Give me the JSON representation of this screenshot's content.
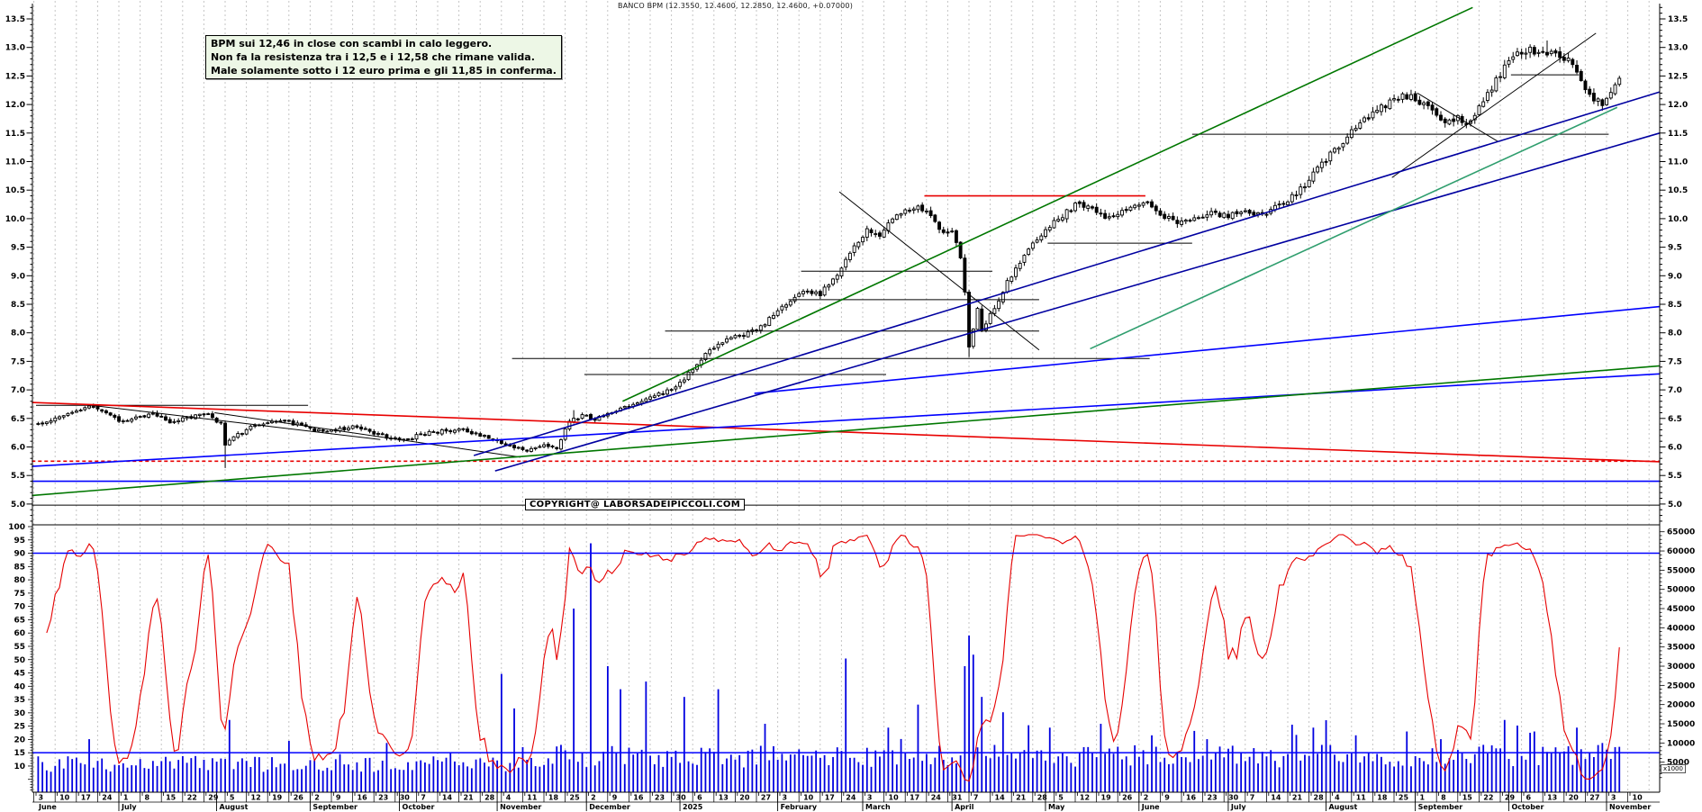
{
  "annotation": {
    "line1": "BPM sui 12,46 in close con scambi in calo leggero.",
    "line2": "Non fa la resistenza tra i 12,5 e i 12,58 che rimane valida.",
    "line3": "Male solamente sotto i 12 euro prima e gli 11,85 in conferma."
  },
  "copyright": "COPYRIGHT@ LABORSADEIPICCOLI.COM",
  "colors": {
    "grid": "#c5c5c5",
    "candle": "#000000",
    "volume_bar": "#0000e0",
    "oscillator": "#e60000",
    "band_line": "#0000ff",
    "black": "#000000",
    "red": "#e80000",
    "blue": "#0000ff",
    "navy": "#0000a0",
    "green": "#007700",
    "teal": "#2f9e6e"
  },
  "chart_data": {
    "type": "candlestick",
    "title": "BANCO BPM (12.3550, 12.4600, 12.2850, 12.4600, +0.07000)",
    "symbol": "BANCO BPM",
    "last_quote": {
      "open": 12.355,
      "high": 12.46,
      "low": 12.285,
      "close": 12.46,
      "change": "+0.07000"
    },
    "price_axis": {
      "label_min": 5.0,
      "label_max": 13.5,
      "step": 0.5,
      "minor_step": 0.1
    },
    "oscillator_axis": {
      "label_min": 10,
      "label_max": 100,
      "step": 5,
      "upper_band": 90,
      "lower_band": 15
    },
    "volume_axis": {
      "label_min": 5000,
      "label_max": 65000,
      "step": 5000,
      "unit_label": "x1000"
    },
    "x_axis": {
      "start_monday": "2024-06-03",
      "months": [
        {
          "label": "June",
          "weeks": [
            3,
            10,
            17,
            24
          ]
        },
        {
          "label": "July",
          "weeks": [
            1,
            8,
            15,
            22,
            29
          ]
        },
        {
          "label": "August",
          "weeks": [
            5,
            12,
            19,
            26
          ]
        },
        {
          "label": "September",
          "weeks": [
            2,
            9,
            16,
            23,
            30
          ]
        },
        {
          "label": "October",
          "weeks": [
            7,
            14,
            21,
            28
          ]
        },
        {
          "label": "November",
          "weeks": [
            4,
            11,
            18,
            25
          ]
        },
        {
          "label": "December",
          "weeks": [
            2,
            9,
            16,
            23,
            30
          ]
        },
        {
          "label": "2025",
          "weeks": [
            6,
            13,
            20,
            27
          ]
        },
        {
          "label": "February",
          "weeks": [
            3,
            10,
            17,
            24
          ]
        },
        {
          "label": "March",
          "weeks": [
            3,
            10,
            17,
            24,
            31
          ]
        },
        {
          "label": "April",
          "weeks": [
            7,
            14,
            21,
            28
          ]
        },
        {
          "label": "May",
          "weeks": [
            5,
            12,
            19,
            26
          ]
        },
        {
          "label": "June",
          "weeks": [
            2,
            9,
            16,
            23,
            30
          ]
        },
        {
          "label": "July",
          "weeks": [
            7,
            14,
            21,
            28
          ]
        },
        {
          "label": "August",
          "weeks": [
            4,
            11,
            18,
            25
          ]
        },
        {
          "label": "September",
          "weeks": [
            1,
            8,
            15,
            22,
            29
          ]
        },
        {
          "label": "October",
          "weeks": [
            6,
            13,
            20,
            27
          ]
        },
        {
          "label": "November",
          "weeks": [
            3,
            10
          ]
        }
      ]
    },
    "close_anchors": [
      [
        0,
        6.38
      ],
      [
        4,
        6.5
      ],
      [
        9,
        6.62
      ],
      [
        12,
        6.72
      ],
      [
        16,
        6.58
      ],
      [
        19,
        6.45
      ],
      [
        23,
        6.5
      ],
      [
        27,
        6.56
      ],
      [
        31,
        6.45
      ],
      [
        35,
        6.52
      ],
      [
        40,
        6.58
      ],
      [
        43,
        6.4
      ],
      [
        44,
        6.02
      ],
      [
        46,
        6.18
      ],
      [
        50,
        6.35
      ],
      [
        55,
        6.42
      ],
      [
        58,
        6.46
      ],
      [
        62,
        6.37
      ],
      [
        66,
        6.28
      ],
      [
        70,
        6.3
      ],
      [
        74,
        6.36
      ],
      [
        78,
        6.28
      ],
      [
        82,
        6.18
      ],
      [
        86,
        6.12
      ],
      [
        90,
        6.22
      ],
      [
        95,
        6.28
      ],
      [
        100,
        6.3
      ],
      [
        104,
        6.2
      ],
      [
        108,
        6.12
      ],
      [
        112,
        6.0
      ],
      [
        115,
        5.94
      ],
      [
        118,
        6.02
      ],
      [
        122,
        5.98
      ],
      [
        125,
        6.45
      ],
      [
        128,
        6.55
      ],
      [
        131,
        6.48
      ],
      [
        134,
        6.6
      ],
      [
        138,
        6.7
      ],
      [
        142,
        6.82
      ],
      [
        146,
        6.92
      ],
      [
        150,
        7.02
      ],
      [
        154,
        7.38
      ],
      [
        158,
        7.7
      ],
      [
        162,
        7.88
      ],
      [
        165,
        7.95
      ],
      [
        169,
        8.05
      ],
      [
        173,
        8.3
      ],
      [
        177,
        8.58
      ],
      [
        181,
        8.72
      ],
      [
        184,
        8.68
      ],
      [
        188,
        9.05
      ],
      [
        192,
        9.5
      ],
      [
        195,
        9.8
      ],
      [
        198,
        9.72
      ],
      [
        201,
        10.0
      ],
      [
        204,
        10.15
      ],
      [
        207,
        10.22
      ],
      [
        210,
        10.02
      ],
      [
        213,
        9.72
      ],
      [
        215,
        9.78
      ],
      [
        217,
        9.35
      ],
      [
        218,
        8.7
      ],
      [
        219,
        7.78
      ],
      [
        220,
        8.1
      ],
      [
        221,
        8.4
      ],
      [
        222,
        8.05
      ],
      [
        224,
        8.3
      ],
      [
        227,
        8.75
      ],
      [
        230,
        9.15
      ],
      [
        233,
        9.45
      ],
      [
        236,
        9.7
      ],
      [
        239,
        9.92
      ],
      [
        242,
        10.12
      ],
      [
        245,
        10.28
      ],
      [
        248,
        10.18
      ],
      [
        251,
        10.05
      ],
      [
        254,
        10.08
      ],
      [
        257,
        10.18
      ],
      [
        260,
        10.32
      ],
      [
        263,
        10.15
      ],
      [
        266,
        10.0
      ],
      [
        269,
        9.92
      ],
      [
        272,
        10.02
      ],
      [
        276,
        10.1
      ],
      [
        280,
        10.04
      ],
      [
        284,
        10.14
      ],
      [
        288,
        10.08
      ],
      [
        292,
        10.22
      ],
      [
        296,
        10.42
      ],
      [
        300,
        10.78
      ],
      [
        304,
        11.12
      ],
      [
        308,
        11.45
      ],
      [
        312,
        11.72
      ],
      [
        316,
        11.95
      ],
      [
        319,
        12.08
      ],
      [
        322,
        12.15
      ],
      [
        325,
        12.05
      ],
      [
        328,
        11.88
      ],
      [
        331,
        11.7
      ],
      [
        334,
        11.78
      ],
      [
        336,
        11.62
      ],
      [
        339,
        11.95
      ],
      [
        342,
        12.3
      ],
      [
        345,
        12.65
      ],
      [
        348,
        12.88
      ],
      [
        351,
        12.98
      ],
      [
        354,
        12.88
      ],
      [
        357,
        12.94
      ],
      [
        360,
        12.78
      ],
      [
        363,
        12.42
      ],
      [
        366,
        12.1
      ],
      [
        368,
        12.02
      ],
      [
        370,
        12.18
      ],
      [
        372,
        12.46
      ]
    ],
    "events": {
      "44": {
        "low": 0.38
      },
      "126": {
        "high": 0.1
      },
      "219": {
        "low": 0.14
      },
      "355": {
        "high": 0.12
      }
    },
    "volume_spikes": {
      "12": 11000,
      "45": 16000,
      "82": 10000,
      "109": 28000,
      "112": 19000,
      "126": 45000,
      "130": 62000,
      "134": 30000,
      "137": 24000,
      "143": 26000,
      "152": 22000,
      "160": 24000,
      "171": 15000,
      "190": 32000,
      "200": 14000,
      "207": 20000,
      "218": 30000,
      "219": 38000,
      "220": 33000,
      "222": 22000,
      "227": 18000,
      "238": 14000,
      "250": 15000,
      "262": 12000,
      "275": 11000,
      "300": 14000,
      "310": 12000,
      "322": 13000,
      "330": 11000,
      "345": 16000,
      "352": 13000,
      "362": 14000,
      "368": 10000,
      "372": 9000
    },
    "lines": [
      {
        "c": "black",
        "p": [
          [
            0,
            6.73
          ],
          [
            64,
            6.73
          ]
        ]
      },
      {
        "c": "black",
        "p": [
          [
            112,
            7.55
          ],
          [
            262,
            7.55
          ]
        ]
      },
      {
        "c": "black",
        "p": [
          [
            129,
            7.27
          ],
          [
            200,
            7.27
          ]
        ]
      },
      {
        "c": "black",
        "p": [
          [
            148,
            8.03
          ],
          [
            236,
            8.03
          ]
        ]
      },
      {
        "c": "black",
        "p": [
          [
            177,
            8.58
          ],
          [
            236,
            8.58
          ]
        ]
      },
      {
        "c": "black",
        "p": [
          [
            180,
            9.08
          ],
          [
            225,
            9.08
          ]
        ]
      },
      {
        "c": "black",
        "p": [
          [
            238,
            9.57
          ],
          [
            272,
            9.57
          ]
        ]
      },
      {
        "c": "black",
        "p": [
          [
            272,
            11.48
          ],
          [
            370,
            11.48
          ]
        ]
      },
      {
        "c": "black",
        "p": [
          [
            347,
            12.52
          ],
          [
            363,
            12.52
          ]
        ]
      },
      {
        "c": "black",
        "p": [
          [
            -1,
            4.98
          ],
          [
            382,
            4.98
          ]
        ]
      },
      {
        "c": "black",
        "p": [
          [
            13,
            6.73
          ],
          [
            81,
            6.13
          ]
        ]
      },
      {
        "c": "black",
        "p": [
          [
            42,
            6.6
          ],
          [
            114,
            5.82
          ]
        ]
      },
      {
        "c": "black",
        "p": [
          [
            189,
            10.47
          ],
          [
            236,
            7.7
          ]
        ]
      },
      {
        "c": "black",
        "p": [
          [
            319,
            10.72
          ],
          [
            367,
            13.25
          ]
        ]
      },
      {
        "c": "black",
        "p": [
          [
            325,
            12.2
          ],
          [
            344,
            11.35
          ]
        ]
      },
      {
        "c": "red",
        "p": [
          [
            -1,
            6.78
          ],
          [
            382,
            5.74
          ]
        ]
      },
      {
        "c": "red",
        "p": [
          [
            209,
            10.4
          ],
          [
            261,
            10.4
          ]
        ]
      },
      {
        "c": "red",
        "dash": true,
        "p": [
          [
            -1,
            5.75
          ],
          [
            382,
            5.75
          ]
        ]
      },
      {
        "c": "blue",
        "p": [
          [
            -1,
            5.4
          ],
          [
            382,
            5.4
          ]
        ]
      },
      {
        "c": "blue",
        "p": [
          [
            -1,
            5.66
          ],
          [
            382,
            7.28
          ]
        ]
      },
      {
        "c": "blue",
        "p": [
          [
            169,
            6.94
          ],
          [
            382,
            8.46
          ]
        ]
      },
      {
        "c": "navy",
        "p": [
          [
            103,
            5.85
          ],
          [
            382,
            12.22
          ]
        ]
      },
      {
        "c": "navy",
        "p": [
          [
            108,
            5.58
          ],
          [
            382,
            11.5
          ]
        ]
      },
      {
        "c": "green",
        "p": [
          [
            -1,
            5.15
          ],
          [
            382,
            7.42
          ]
        ]
      },
      {
        "c": "green",
        "p": [
          [
            138,
            6.8
          ],
          [
            338,
            13.7
          ]
        ]
      },
      {
        "c": "teal",
        "p": [
          [
            248,
            7.72
          ],
          [
            372,
            11.95
          ]
        ]
      }
    ]
  }
}
